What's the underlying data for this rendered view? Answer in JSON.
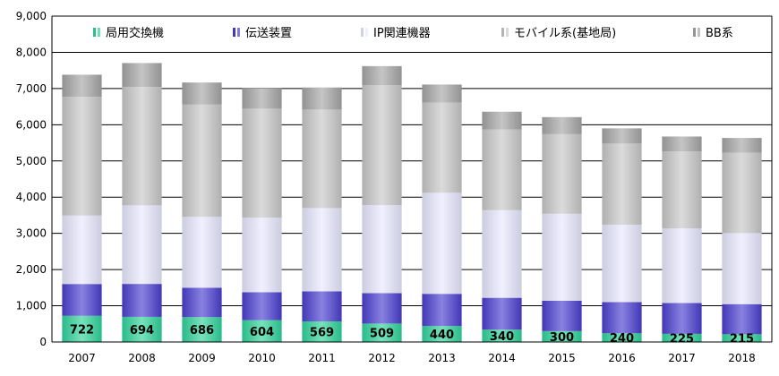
{
  "chart_data": {
    "type": "bar",
    "stacked": true,
    "categories": [
      "2007",
      "2008",
      "2009",
      "2010",
      "2011",
      "2012",
      "2013",
      "2014",
      "2015",
      "2016",
      "2017",
      "2018"
    ],
    "series": [
      {
        "name": "局用交換機",
        "color": "#2fd39a",
        "values": [
          722,
          694,
          686,
          604,
          569,
          509,
          440,
          340,
          300,
          240,
          225,
          215
        ],
        "labeled": true
      },
      {
        "name": "伝送装置",
        "color": "#4a3fd0",
        "values": [
          880,
          910,
          810,
          770,
          830,
          840,
          890,
          880,
          840,
          860,
          850,
          830
        ],
        "labeled": false
      },
      {
        "name": "IP関連機器",
        "color": "#e8e8ff",
        "values": [
          1890,
          2170,
          1960,
          2060,
          2300,
          2430,
          2790,
          2420,
          2400,
          2140,
          2060,
          1970
        ],
        "labeled": false
      },
      {
        "name": "モバイル系(基地局)",
        "color": "#c8c8c8",
        "values": [
          3280,
          3270,
          3100,
          3010,
          2720,
          3310,
          2490,
          2230,
          2200,
          2240,
          2130,
          2210
        ],
        "labeled": false
      },
      {
        "name": "BB系",
        "color": "#a6a6a6",
        "values": [
          610,
          660,
          610,
          560,
          610,
          530,
          500,
          490,
          470,
          420,
          410,
          410
        ],
        "labeled": false
      }
    ],
    "ylim": [
      0,
      9000
    ],
    "yticks": [
      0,
      1000,
      2000,
      3000,
      4000,
      5000,
      6000,
      7000,
      8000,
      9000
    ],
    "ytick_labels": [
      "0",
      "1,000",
      "2,000",
      "3,000",
      "4,000",
      "5,000",
      "6,000",
      "7,000",
      "8,000",
      "9,000"
    ],
    "grid": true,
    "legend_position": "top-inside",
    "title": "",
    "xlabel": "",
    "ylabel": ""
  }
}
